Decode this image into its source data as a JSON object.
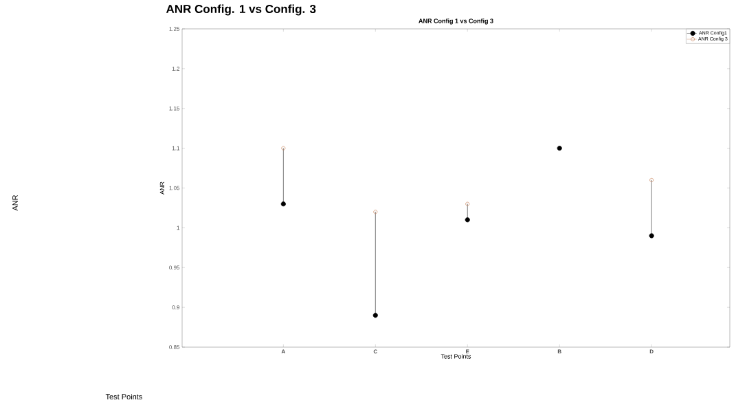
{
  "chart_data": {
    "type": "scatter",
    "title": "ANR Config. 1 vs Config. 3",
    "subtitle": "ANR Config 1 vs Config 3",
    "xlabel": "Test Points",
    "ylabel": "ANR",
    "annotations": [
      "ANR",
      "Test Points"
    ],
    "categories": [
      "A",
      "C",
      "E",
      "B",
      "D"
    ],
    "series": [
      {
        "name": "ANR Config1",
        "color": "#000000",
        "marker": "circle",
        "values": [
          1.03,
          0.89,
          1.01,
          1.1,
          0.99
        ]
      },
      {
        "name": "ANR Config 3",
        "color": "#c8825a",
        "type": "lollipop",
        "marker": "circle",
        "values": [
          1.1,
          1.02,
          1.03,
          null,
          1.06
        ]
      }
    ],
    "ylim": [
      0.85,
      1.25
    ],
    "yticks": [
      0.85,
      0.9,
      0.95,
      1,
      1.05,
      1.1,
      1.15,
      1.2,
      1.25
    ],
    "legend": "top right",
    "grid": false
  }
}
